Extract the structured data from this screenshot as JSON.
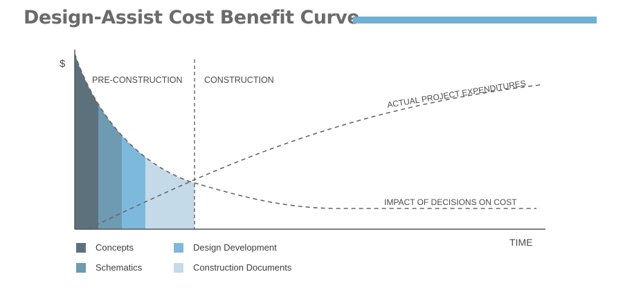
{
  "title": "Design-Assist Cost Benefit Curve",
  "colors": {
    "title_bar": "#6fb0d4",
    "concepts": "#5d717d",
    "schematics": "#6e9ab2",
    "design_development": "#7db9dc",
    "construction_documents": "#c4dae8",
    "axis": "#555555",
    "curve": "#666666"
  },
  "axes": {
    "y_label": "$",
    "x_label": "TIME"
  },
  "phases": {
    "pre_construction": "PRE-CONSTRUCTION",
    "construction": "CONSTRUCTION"
  },
  "curves": {
    "expenditures": "ACTUAL PROJECT EXPENDITURES",
    "impact": "IMPACT OF DECISIONS ON COST"
  },
  "legend": [
    {
      "label": "Concepts",
      "color": "#5d717d"
    },
    {
      "label": "Schematics",
      "color": "#6e9ab2"
    },
    {
      "label": "Design Development",
      "color": "#7db9dc"
    },
    {
      "label": "Construction Documents",
      "color": "#c4dae8"
    }
  ]
}
